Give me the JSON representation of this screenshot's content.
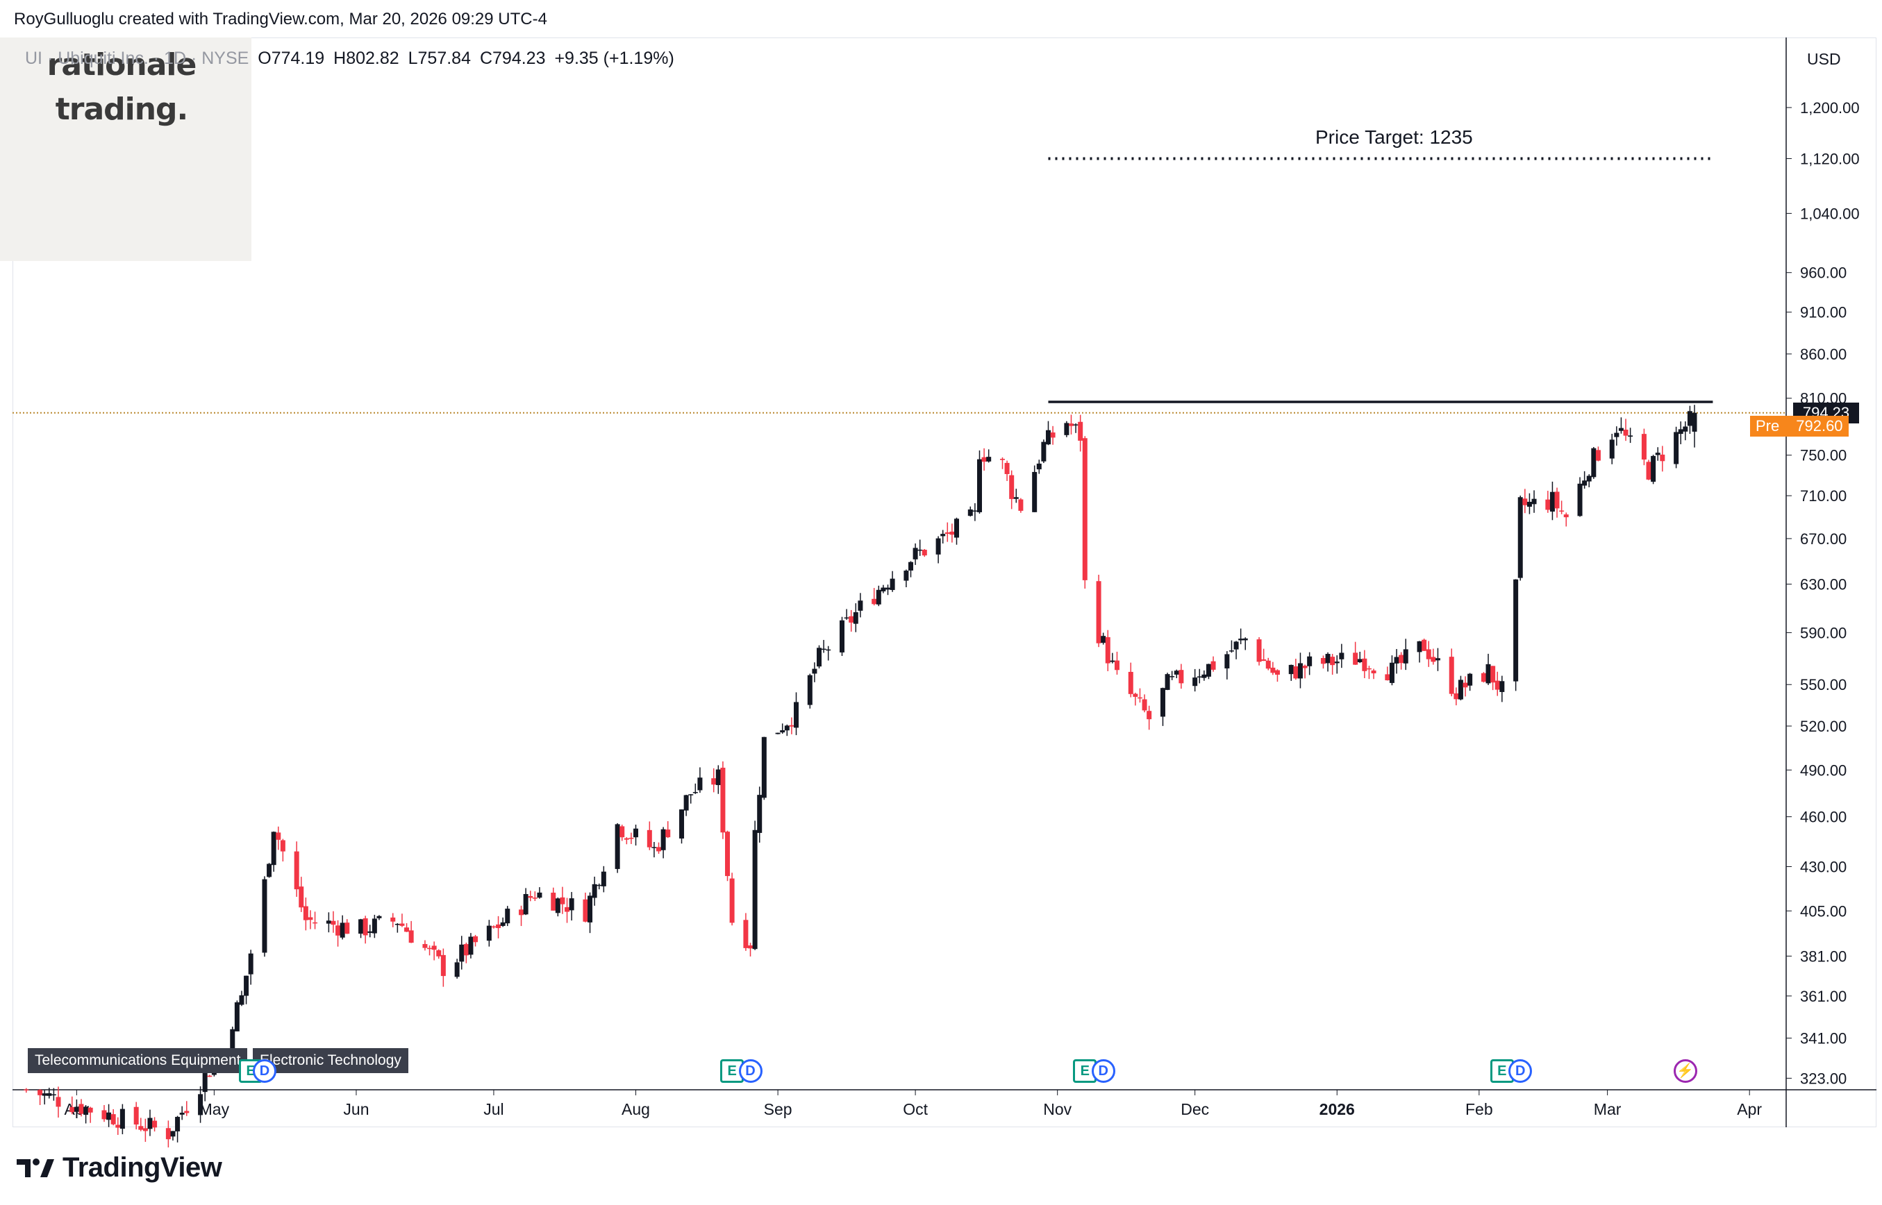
{
  "header": {
    "credit": "RoyGulluoglu created with TradingView.com, Mar 20, 2026 09:29 UTC-4"
  },
  "legend": {
    "symbol": "UI · Ubiquiti Inc. · 1D · NYSE",
    "open": "O774.19",
    "high": "H802.82",
    "low": "L757.84",
    "close": "C794.23",
    "change": "+9.35 (+1.19%)"
  },
  "logo": {
    "line1": "rationale",
    "line2": "trading."
  },
  "currency": "USD",
  "annotation": {
    "text": "Price Target: 1235",
    "level": 1120,
    "from": "2025-10-30",
    "to": "2026-03-24"
  },
  "resistance": {
    "level": 806,
    "from": "2025-10-30",
    "to": "2026-03-24"
  },
  "current_price": {
    "label": "794.23",
    "value": 794.23
  },
  "premarket": {
    "tag": "Pre",
    "label": "792.60",
    "value": 792.6
  },
  "sector_tag": "Telecommunications Equipment",
  "sector_tag_2": "Electronic Technology",
  "events": [
    {
      "type": "E",
      "label": "E",
      "date": "2025-05-09"
    },
    {
      "type": "D",
      "label": "D",
      "date": "2025-05-12"
    },
    {
      "type": "E",
      "label": "E",
      "date": "2025-08-22"
    },
    {
      "type": "D",
      "label": "D",
      "date": "2025-08-26"
    },
    {
      "type": "E",
      "label": "E",
      "date": "2025-11-07"
    },
    {
      "type": "D",
      "label": "D",
      "date": "2025-11-11"
    },
    {
      "type": "E",
      "label": "E",
      "date": "2026-02-06"
    },
    {
      "type": "D",
      "label": "D",
      "date": "2026-02-10"
    },
    {
      "type": "S",
      "label": "⚡",
      "date": "2026-03-18"
    }
  ],
  "brand": "TradingView",
  "colors": {
    "up": "#131722",
    "down": "#f23645",
    "accent": "#f7861b",
    "price_line": "#b8862b"
  },
  "chart_data": {
    "type": "candlestick",
    "title": "UI · Ubiquiti Inc. · 1D · NYSE",
    "y_scale": "log",
    "ylim": [
      318,
      1240
    ],
    "x_range": [
      "2025-03-18",
      "2026-04-09"
    ],
    "x_ticks": [
      {
        "label": "Apr",
        "date": "2025-04-01"
      },
      {
        "label": "May",
        "date": "2025-05-01"
      },
      {
        "label": "Jun",
        "date": "2025-06-01"
      },
      {
        "label": "Jul",
        "date": "2025-07-01"
      },
      {
        "label": "Aug",
        "date": "2025-08-01"
      },
      {
        "label": "Sep",
        "date": "2025-09-01"
      },
      {
        "label": "Oct",
        "date": "2025-10-01"
      },
      {
        "label": "Nov",
        "date": "2025-11-01"
      },
      {
        "label": "Dec",
        "date": "2025-12-01"
      },
      {
        "label": "2026",
        "date": "2026-01-01"
      },
      {
        "label": "Feb",
        "date": "2026-02-01"
      },
      {
        "label": "Mar",
        "date": "2026-03-01"
      },
      {
        "label": "Apr",
        "date": "2026-04-01"
      }
    ],
    "y_ticks": [
      "1,200.00",
      "1,120.00",
      "1,040.00",
      "960.00",
      "910.00",
      "860.00",
      "810.00",
      "750.00",
      "710.00",
      "670.00",
      "630.00",
      "590.00",
      "550.00",
      "520.00",
      "490.00",
      "460.00",
      "430.00",
      "405.00",
      "381.00",
      "361.00",
      "341.00",
      "323.00"
    ],
    "key_points": [
      {
        "date": "2025-03-21",
        "close": 318
      },
      {
        "date": "2025-04-21",
        "close": 300
      },
      {
        "date": "2025-05-01",
        "close": 330
      },
      {
        "date": "2025-05-07",
        "close": 360
      },
      {
        "date": "2025-05-12",
        "close": 420
      },
      {
        "date": "2025-05-14",
        "close": 455
      },
      {
        "date": "2025-05-21",
        "close": 400
      },
      {
        "date": "2025-06-02",
        "close": 395
      },
      {
        "date": "2025-06-10",
        "close": 400
      },
      {
        "date": "2025-06-20",
        "close": 375
      },
      {
        "date": "2025-07-01",
        "close": 395
      },
      {
        "date": "2025-07-10",
        "close": 415
      },
      {
        "date": "2025-07-21",
        "close": 405
      },
      {
        "date": "2025-07-28",
        "close": 455
      },
      {
        "date": "2025-08-05",
        "close": 440
      },
      {
        "date": "2025-08-13",
        "close": 475
      },
      {
        "date": "2025-08-19",
        "close": 485
      },
      {
        "date": "2025-08-22",
        "close": 400
      },
      {
        "date": "2025-08-26",
        "close": 388
      },
      {
        "date": "2025-08-27",
        "close": 450
      },
      {
        "date": "2025-08-29",
        "close": 510
      },
      {
        "date": "2025-09-05",
        "close": 530
      },
      {
        "date": "2025-09-10",
        "close": 570
      },
      {
        "date": "2025-09-19",
        "close": 610
      },
      {
        "date": "2025-09-29",
        "close": 650
      },
      {
        "date": "2025-10-07",
        "close": 670
      },
      {
        "date": "2025-10-14",
        "close": 690
      },
      {
        "date": "2025-10-15",
        "close": 755
      },
      {
        "date": "2025-10-20",
        "close": 740
      },
      {
        "date": "2025-10-22",
        "close": 715
      },
      {
        "date": "2025-10-24",
        "close": 700
      },
      {
        "date": "2025-10-29",
        "close": 760
      },
      {
        "date": "2025-11-03",
        "close": 785
      },
      {
        "date": "2025-11-06",
        "close": 770
      },
      {
        "date": "2025-11-07",
        "close": 630
      },
      {
        "date": "2025-11-10",
        "close": 590
      },
      {
        "date": "2025-11-14",
        "close": 555
      },
      {
        "date": "2025-11-21",
        "close": 525
      },
      {
        "date": "2025-11-25",
        "close": 550
      },
      {
        "date": "2025-12-05",
        "close": 565
      },
      {
        "date": "2025-12-12",
        "close": 585
      },
      {
        "date": "2025-12-19",
        "close": 555
      },
      {
        "date": "2025-12-26",
        "close": 565
      },
      {
        "date": "2026-01-06",
        "close": 570
      },
      {
        "date": "2026-01-13",
        "close": 560
      },
      {
        "date": "2026-01-20",
        "close": 580
      },
      {
        "date": "2026-01-27",
        "close": 545
      },
      {
        "date": "2026-02-03",
        "close": 560
      },
      {
        "date": "2026-02-06",
        "close": 545
      },
      {
        "date": "2026-02-09",
        "close": 625
      },
      {
        "date": "2026-02-10",
        "close": 700
      },
      {
        "date": "2026-02-17",
        "close": 705
      },
      {
        "date": "2026-02-20",
        "close": 690
      },
      {
        "date": "2026-02-25",
        "close": 740
      },
      {
        "date": "2026-03-03",
        "close": 780
      },
      {
        "date": "2026-03-06",
        "close": 760
      },
      {
        "date": "2026-03-10",
        "close": 735
      },
      {
        "date": "2026-03-16",
        "close": 770
      },
      {
        "date": "2026-03-19",
        "close": 785
      },
      {
        "date": "2026-03-20",
        "close": 794.23
      }
    ],
    "last_bar": {
      "date": "2026-03-20",
      "open": 774.19,
      "high": 802.82,
      "low": 757.84,
      "close": 794.23
    }
  }
}
